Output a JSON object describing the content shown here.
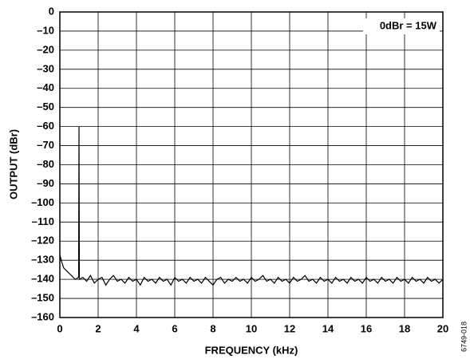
{
  "chart_data": {
    "type": "line",
    "y_label": "OUTPUT (dBr)",
    "x_label": "FREQUENCY (kHz)",
    "annotation": "0dBr = 15W",
    "figure_id": "6749-018",
    "xlim": [
      0,
      20
    ],
    "xticks": [
      0,
      2,
      4,
      6,
      8,
      10,
      12,
      14,
      16,
      18,
      20
    ],
    "ylim": [
      -160,
      0
    ],
    "yticks": [
      0,
      {
        "value": -10,
        "label": "–10"
      },
      {
        "value": -20,
        "label": "–20"
      },
      {
        "value": -30,
        "label": "–30"
      },
      {
        "value": -40,
        "label": "–40"
      },
      {
        "value": -50,
        "label": "–50"
      },
      {
        "value": -60,
        "label": "–60"
      },
      {
        "value": -70,
        "label": "–70"
      },
      {
        "value": -80,
        "label": "–80"
      },
      {
        "value": -90,
        "label": "–90"
      },
      {
        "value": -100,
        "label": "–100"
      },
      {
        "value": -110,
        "label": "–110"
      },
      {
        "value": -120,
        "label": "–120"
      },
      {
        "value": -130,
        "label": "–130"
      },
      {
        "value": -140,
        "label": "–140"
      },
      {
        "value": -150,
        "label": "–150"
      },
      {
        "value": -160,
        "label": "–160"
      }
    ],
    "grid": true,
    "color": "#000000",
    "x": [
      0,
      0.1,
      0.2,
      0.4,
      0.6,
      0.8,
      0.98,
      1,
      1.02,
      1.2,
      1.4,
      1.6,
      1.8,
      2.0,
      2.2,
      2.4,
      2.6,
      2.8,
      3.0,
      3.2,
      3.4,
      3.6,
      3.8,
      4.0,
      4.2,
      4.4,
      4.6,
      4.8,
      5.0,
      5.2,
      5.4,
      5.6,
      5.8,
      6.0,
      6.2,
      6.4,
      6.6,
      6.8,
      7.0,
      7.2,
      7.4,
      7.6,
      7.8,
      8.0,
      8.2,
      8.4,
      8.6,
      8.8,
      9.0,
      9.2,
      9.4,
      9.6,
      9.8,
      10.0,
      10.2,
      10.4,
      10.6,
      10.8,
      11.0,
      11.2,
      11.4,
      11.6,
      11.8,
      12.0,
      12.2,
      12.4,
      12.6,
      12.8,
      13.0,
      13.2,
      13.4,
      13.6,
      13.8,
      14.0,
      14.2,
      14.4,
      14.6,
      14.8,
      15.0,
      15.2,
      15.4,
      15.6,
      15.8,
      16.0,
      16.2,
      16.4,
      16.6,
      16.8,
      17.0,
      17.2,
      17.4,
      17.6,
      17.8,
      18.0,
      18.2,
      18.4,
      18.6,
      18.8,
      19.0,
      19.2,
      19.4,
      19.6,
      19.8,
      20.0
    ],
    "values": [
      -127,
      -131,
      -134,
      -136,
      -138,
      -140,
      -139,
      -60,
      -140,
      -139,
      -141,
      -138,
      -142,
      -140,
      -139,
      -143,
      -140,
      -138,
      -141,
      -140,
      -142,
      -139,
      -141,
      -140,
      -143,
      -139,
      -141,
      -140,
      -142,
      -139,
      -141,
      -140,
      -143,
      -139,
      -141,
      -140,
      -142,
      -139,
      -141,
      -140,
      -142,
      -139,
      -141,
      -143,
      -140,
      -139,
      -142,
      -140,
      -141,
      -139,
      -141,
      -140,
      -142,
      -139,
      -141,
      -140,
      -138,
      -141,
      -140,
      -142,
      -139,
      -141,
      -140,
      -142,
      -139,
      -141,
      -140,
      -138,
      -141,
      -140,
      -142,
      -139,
      -141,
      -140,
      -142,
      -139,
      -141,
      -140,
      -142,
      -139,
      -141,
      -140,
      -142,
      -139,
      -141,
      -140,
      -142,
      -139,
      -141,
      -140,
      -142,
      -139,
      -141,
      -140,
      -142,
      -139,
      -141,
      -140,
      -142,
      -139,
      -141,
      -140,
      -142,
      -140
    ]
  }
}
